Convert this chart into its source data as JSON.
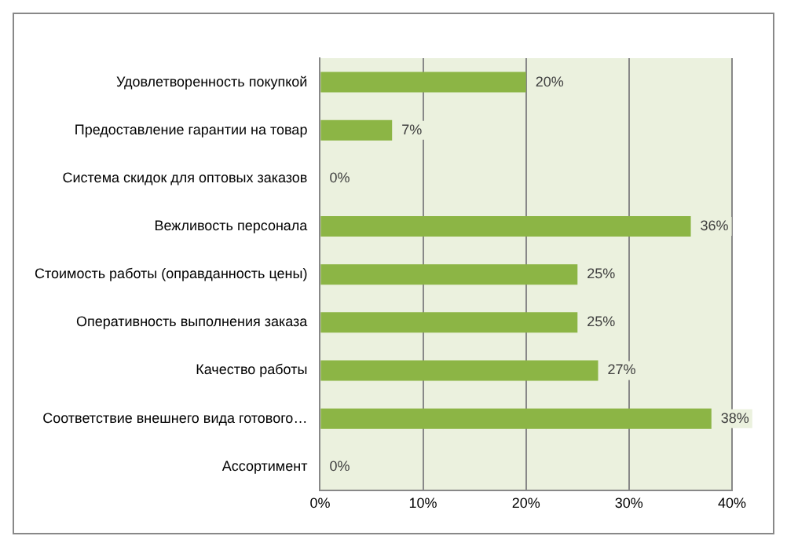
{
  "chart_data": {
    "type": "bar",
    "orientation": "horizontal",
    "categories": [
      "Удовлетворенность покупкой",
      "Предоставление гарантии на товар",
      "Система скидок для оптовых заказов",
      "Вежливость персонала",
      "Стоимость работы (оправданность цены)",
      "Оперативность выполнения заказа",
      "Качество работы",
      "Соответствие внешнего вида готового…",
      "Ассортимент"
    ],
    "values": [
      20,
      7,
      0,
      36,
      25,
      25,
      27,
      38,
      0
    ],
    "color": "#8cb545",
    "xlim": [
      0,
      40
    ],
    "xticks": [
      {
        "value": 0,
        "label": "0%"
      },
      {
        "value": 10,
        "label": "10%"
      },
      {
        "value": 20,
        "label": "20%"
      },
      {
        "value": 30,
        "label": "30%"
      },
      {
        "value": 40,
        "label": "40%"
      }
    ],
    "value_labels": [
      "20%",
      "7%",
      "0%",
      "36%",
      "25%",
      "25%",
      "27%",
      "38%",
      "0%"
    ],
    "grid": "x",
    "legend": false
  }
}
